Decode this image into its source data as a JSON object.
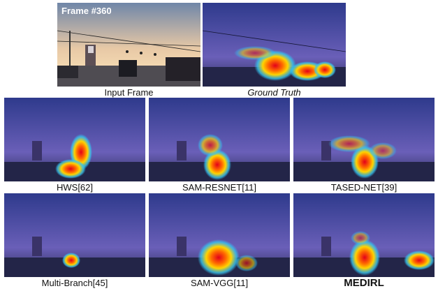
{
  "frame_label": "Frame #360",
  "colors": {
    "sky_top": "#2e3a8c",
    "sky_bottom": "#6a5fb8",
    "road": "#2a2d55",
    "heat_core": "#e3001b",
    "heat_mid": "#ffd400",
    "heat_outer": "#36c5f0"
  },
  "panels": [
    {
      "id": "input",
      "caption": "Input Frame",
      "style": "normal"
    },
    {
      "id": "gt",
      "caption": "Ground Truth",
      "style": "italic"
    },
    {
      "id": "hws",
      "caption": "HWS[62]",
      "style": "normal"
    },
    {
      "id": "samresnet",
      "caption": "SAM-RESNET[11]",
      "style": "normal"
    },
    {
      "id": "tased",
      "caption": "TASED-NET[39]",
      "style": "normal"
    },
    {
      "id": "multibranch",
      "caption": "Multi-Branch[45]",
      "style": "normal"
    },
    {
      "id": "samvgg",
      "caption": "SAM-VGG[11]",
      "style": "normal"
    },
    {
      "id": "medirl",
      "caption": "MEDIRL",
      "style": "bold"
    }
  ]
}
